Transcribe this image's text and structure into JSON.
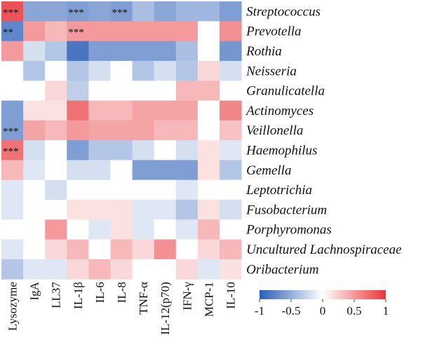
{
  "chart_data": {
    "type": "heatmap",
    "title": "",
    "rows": [
      "Streptococcus",
      "Prevotella",
      "Rothia",
      "Neisseria",
      "Granulicatella",
      "Actinomyces",
      "Veillonella",
      "Haemophilus",
      "Gemella",
      "Leptotrichia",
      "Fusobacterium",
      "Porphyromonas",
      "Uncultured Lachnospiraceae",
      "Oribacterium"
    ],
    "columns": [
      "Lysozyme",
      "IgA",
      "LL37",
      "IL-1β",
      "IL-6",
      "IL-8",
      "TNF-α",
      "IL-12(p70)",
      "IFN-γ",
      "MCP-1",
      "IL-10"
    ],
    "values": [
      [
        0.85,
        -0.55,
        -0.55,
        -0.6,
        -0.55,
        -0.6,
        -0.4,
        -0.55,
        -0.45,
        -0.45,
        -0.6
      ],
      [
        -0.75,
        0.5,
        0.35,
        0.5,
        0.5,
        0.5,
        0.5,
        0.5,
        0.5,
        0.0,
        0.55
      ],
      [
        0.5,
        -0.2,
        -0.35,
        -0.85,
        -0.6,
        -0.6,
        -0.6,
        -0.6,
        -0.4,
        0.0,
        -0.65
      ],
      [
        0.0,
        -0.35,
        0.0,
        -0.35,
        -0.2,
        0.0,
        -0.35,
        -0.2,
        -0.35,
        0.2,
        -0.2
      ],
      [
        0.0,
        0.0,
        0.2,
        -0.3,
        0.0,
        0.0,
        0.0,
        0.0,
        0.35,
        0.35,
        0.0
      ],
      [
        -0.6,
        0.15,
        0.15,
        0.7,
        0.35,
        0.35,
        0.45,
        0.45,
        0.45,
        0.0,
        0.6
      ],
      [
        -0.6,
        0.45,
        0.35,
        0.5,
        0.45,
        0.45,
        0.45,
        0.35,
        0.35,
        0.0,
        0.3
      ],
      [
        0.7,
        -0.2,
        0.0,
        -0.6,
        -0.35,
        -0.35,
        -0.2,
        0.0,
        -0.2,
        0.15,
        -0.15
      ],
      [
        0.35,
        -0.15,
        0.0,
        -0.2,
        -0.2,
        0.0,
        -0.6,
        -0.6,
        -0.6,
        0.15,
        -0.35
      ],
      [
        -0.15,
        0.0,
        -0.2,
        0.0,
        0.0,
        0.0,
        0.0,
        0.0,
        -0.15,
        0.0,
        0.0
      ],
      [
        -0.15,
        0.0,
        0.0,
        0.15,
        0.15,
        0.15,
        -0.15,
        -0.15,
        -0.35,
        0.15,
        -0.2
      ],
      [
        0.0,
        0.0,
        0.5,
        0.0,
        -0.15,
        0.15,
        -0.15,
        0.0,
        -0.15,
        0.35,
        0.0
      ],
      [
        -0.15,
        0.0,
        0.2,
        0.35,
        0.0,
        0.35,
        0.2,
        0.55,
        0.0,
        0.2,
        0.35
      ],
      [
        -0.35,
        -0.15,
        -0.15,
        0.2,
        0.35,
        0.2,
        0.0,
        0.0,
        0.2,
        -0.15,
        0.15
      ]
    ],
    "annotations": [
      {
        "row": "Streptococcus",
        "column": "Lysozyme",
        "text": "***"
      },
      {
        "row": "Streptococcus",
        "column": "IL-1β",
        "text": "***"
      },
      {
        "row": "Streptococcus",
        "column": "IL-8",
        "text": "***"
      },
      {
        "row": "Prevotella",
        "column": "Lysozyme",
        "text": "**"
      },
      {
        "row": "Prevotella",
        "column": "IL-1β",
        "text": "***"
      },
      {
        "row": "Veillonella",
        "column": "Lysozyme",
        "text": "***"
      },
      {
        "row": "Haemophilus",
        "column": "Lysozyme",
        "text": "***"
      }
    ],
    "colorbar": {
      "range": [
        -1,
        1
      ],
      "ticks": [
        "-1",
        "-0.5",
        "0",
        "0.5",
        "1"
      ],
      "low_color": "#2a5db5",
      "mid_color": "#ffffff",
      "high_color": "#e8353a"
    }
  }
}
